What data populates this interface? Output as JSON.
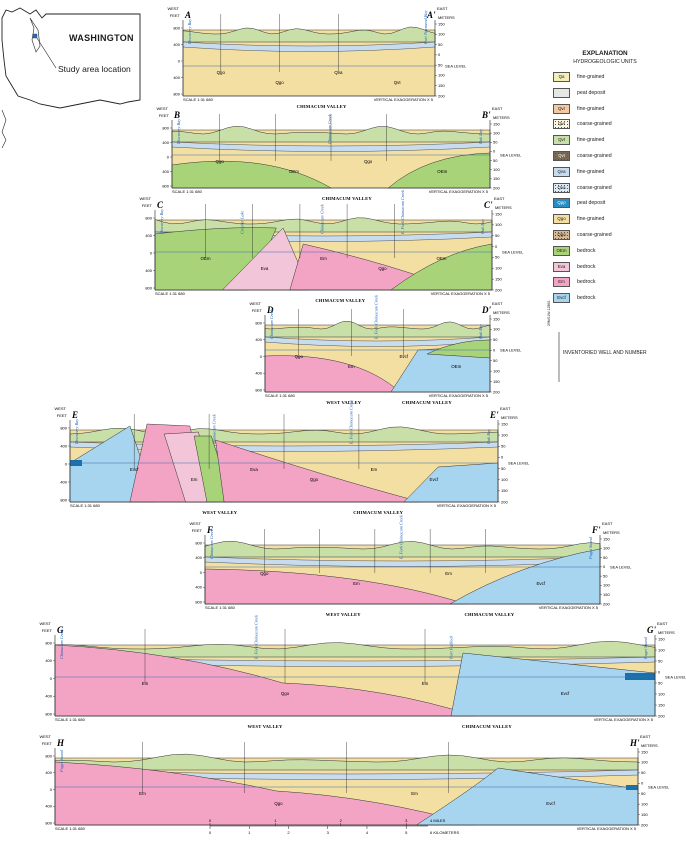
{
  "inset": {
    "title": "WASHINGTON",
    "study_area_label": "Study area location"
  },
  "legend": {
    "title": "EXPLANATION",
    "subtitle": "HYDROGEOLOGIC UNITS",
    "units": [
      {
        "code": "Qa",
        "desc": "fine-grained",
        "color": "#f6eeb8"
      },
      {
        "code": "",
        "desc": "peat deposit",
        "color": "#ffffff"
      },
      {
        "code": "Qvr",
        "desc": "fine-grained",
        "color": "#f2c9a0"
      },
      {
        "code": "Qvr",
        "desc": "coarse-grained",
        "color": "#fbf6e2"
      },
      {
        "code": "Qvt",
        "desc": "fine-grained",
        "color": "#c9dfa8"
      },
      {
        "code": "Qvt",
        "desc": "coarse-grained",
        "color": "#7a6a52"
      },
      {
        "code": "Qva",
        "desc": "fine-grained",
        "color": "#c8dcef"
      },
      {
        "code": "Qva",
        "desc": "coarse-grained",
        "color": "#dceaf6"
      },
      {
        "code": "Qpp",
        "desc": "peat deposit",
        "color": "#2b8cbf"
      },
      {
        "code": "Qgo",
        "desc": "fine-grained",
        "color": "#f3dfa1"
      },
      {
        "code": "Qgo",
        "desc": "coarse-grained",
        "color": "#d8b994"
      },
      {
        "code": "OEm",
        "desc": "bedrock",
        "color": "#a9d378"
      },
      {
        "code": "Eva",
        "desc": "bedrock",
        "color": "#f2c6d8"
      },
      {
        "code": "Em",
        "desc": "bedrock",
        "color": "#f3a3c4"
      },
      {
        "code": "Evcf",
        "desc": "bedrock",
        "color": "#a7d4ee"
      }
    ],
    "well_label": "INVENTORIED WELL AND NUMBER",
    "well_number": "29N/01W-12B01"
  },
  "sections": [
    {
      "id": "A",
      "left": "WEST",
      "right": "EAST",
      "left_letter": "A",
      "right_letter": "A'",
      "valley1": "CHIMACUM VALLEY",
      "valley2": "",
      "places": [
        "Discovery Bay",
        "Port Townsend Bay"
      ],
      "units": [
        "Qgo",
        "Qgo",
        "Qva",
        "Qvt"
      ],
      "scale": "SCALE 1:31 680",
      "vexag": "VERTICAL EXAGGERATION X 5"
    },
    {
      "id": "B",
      "left": "WEST",
      "right": "EAST",
      "left_letter": "B",
      "right_letter": "B'",
      "valley1": "CHIMACUM VALLEY",
      "valley2": "",
      "places": [
        "Discovery Bay",
        "Chimacum Creek",
        "Oak Bay"
      ],
      "units": [
        "Qgo",
        "OEm",
        "Qgo",
        "OEm"
      ],
      "scale": "SCALE 1:31 680",
      "vexag": "VERTICAL EXAGGERATION X 5"
    },
    {
      "id": "C",
      "left": "WEST",
      "right": "EAST",
      "left_letter": "C",
      "right_letter": "C'",
      "valley1": "CHIMACUM VALLEY",
      "valley2": "",
      "places": [
        "Discovery Bay",
        "Crocker Lake",
        "Chimacum Creek",
        "E. Fork Chimacum Creek",
        "Oak Bay"
      ],
      "units": [
        "OEm",
        "Eva",
        "Em",
        "Qgo",
        "OEm"
      ],
      "scale": "SCALE 1:31 680",
      "vexag": "VERTICAL EXAGGERATION X 5"
    },
    {
      "id": "D",
      "left": "WEST",
      "right": "EAST",
      "left_letter": "D",
      "right_letter": "D'",
      "valley1": "WEST VALLEY",
      "valley2": "CHIMACUM VALLEY",
      "places": [
        "Chimacum Creek",
        "E. Fork Chimacum Creek",
        "Oak Bay"
      ],
      "units": [
        "Qgo",
        "Em",
        "Evcf",
        "OEm"
      ],
      "scale": "SCALE 1:31 680",
      "vexag": "VERTICAL EXAGGERATION X 5"
    },
    {
      "id": "E",
      "left": "WEST",
      "right": "EAST",
      "left_letter": "E",
      "right_letter": "E'",
      "valley1": "WEST VALLEY",
      "valley2": "CHIMACUM VALLEY",
      "places": [
        "Discovery Bay",
        "Chimacum Creek",
        "E. Fork Chimacum Creek",
        "Oak Bay"
      ],
      "units": [
        "Evcf",
        "Em",
        "Eva",
        "Qgo",
        "Em",
        "Evcf"
      ],
      "scale": "SCALE 1:31 680",
      "vexag": "VERTICAL EXAGGERATION X 5"
    },
    {
      "id": "F",
      "left": "WEST",
      "right": "EAST",
      "left_letter": "F",
      "right_letter": "F'",
      "valley1": "WEST VALLEY",
      "valley2": "CHIMACUM VALLEY",
      "places": [
        "Chimacum Creek",
        "E. Fork Chimacum Creek",
        "Puget Sound"
      ],
      "units": [
        "Qgo",
        "Em",
        "Em",
        "Evcf"
      ],
      "scale": "SCALE 1:31 680",
      "vexag": "VERTICAL EXAGGERATION X 5"
    },
    {
      "id": "G",
      "left": "WEST",
      "right": "EAST",
      "left_letter": "G",
      "right_letter": "G'",
      "valley1": "WEST VALLEY",
      "valley2": "CHIMACUM VALLEY",
      "places": [
        "Chimacum Creek",
        "E. Fork Chimacum Creek",
        "Port Hadlock",
        "Puget Sound"
      ],
      "units": [
        "Em",
        "Qgo",
        "Em",
        "Evcf"
      ],
      "scale": "SCALE 1:31 680",
      "vexag": "VERTICAL EXAGGERATION X 5"
    },
    {
      "id": "H",
      "left": "WEST",
      "right": "EAST",
      "left_letter": "H",
      "right_letter": "H'",
      "valley1": "",
      "valley2": "",
      "places": [
        "Puget Sound"
      ],
      "units": [
        "Em",
        "Qgo",
        "Em",
        "Evcf"
      ],
      "scale": "SCALE 1:31 680",
      "vexag": "VERTICAL EXAGGERATION X 5"
    }
  ],
  "axis": {
    "feet_label": "FEET",
    "meters_label": "METERS",
    "sea_level": "SEA LEVEL",
    "feet_ticks": [
      "800",
      "400",
      "0",
      "400",
      "800"
    ],
    "meters_ticks": [
      "150",
      "100",
      "50",
      "0",
      "50",
      "100",
      "150",
      "200"
    ]
  },
  "scale_bar": {
    "miles_label": "4 MILES",
    "km_label": "6 KILOMETERS",
    "mile_ticks": [
      "0",
      "1",
      "2",
      "3"
    ],
    "km_ticks": [
      "0",
      "1",
      "2",
      "3",
      "4",
      "5"
    ]
  }
}
